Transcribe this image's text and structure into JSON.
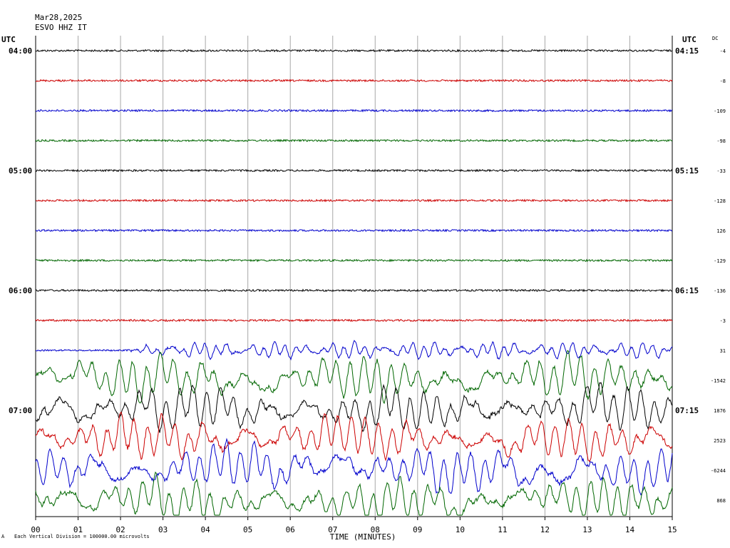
{
  "header": {
    "date": "Mar28,2025",
    "station": "ESVO HHZ IT",
    "left_tz": "UTC",
    "right_tz": "UTC",
    "dc_label": "DC"
  },
  "footer": {
    "note_marker": "A",
    "scale_note": "Each Vertical Division = 100000.00 microvolts"
  },
  "chart_data": {
    "type": "line",
    "title": "",
    "xlabel": "TIME (MINUTES)",
    "ylabel": "",
    "x_ticks": [
      "00",
      "01",
      "02",
      "03",
      "04",
      "05",
      "06",
      "07",
      "08",
      "09",
      "10",
      "11",
      "12",
      "13",
      "14",
      "15"
    ],
    "xlim": [
      0,
      15
    ],
    "grid": "vertical lines every minute",
    "trace_colors": [
      "#000000",
      "#cc0000",
      "#0000cc",
      "#006600"
    ],
    "left_time_labels": [
      {
        "row": 0,
        "text": "04:00"
      },
      {
        "row": 4,
        "text": "05:00"
      },
      {
        "row": 8,
        "text": "06:00"
      },
      {
        "row": 12,
        "text": "07:00"
      }
    ],
    "right_time_labels": [
      {
        "row": 0,
        "text": "04:15"
      },
      {
        "row": 4,
        "text": "05:15"
      },
      {
        "row": 8,
        "text": "06:15"
      },
      {
        "row": 12,
        "text": "07:15"
      }
    ],
    "dc_offsets": [
      "-4",
      "-8",
      "-109",
      "-98",
      "-33",
      "-128",
      "126",
      "-129",
      "-136",
      "-3",
      "31",
      "-1542",
      "1876",
      "2523",
      "-6244",
      "868"
    ],
    "trace_activity": [
      "quiet",
      "quiet",
      "quiet",
      "quiet",
      "quiet",
      "quiet",
      "quiet",
      "quiet",
      "quiet",
      "quiet",
      "onset",
      "strong",
      "strong",
      "strong",
      "strong",
      "strong"
    ],
    "onset_minute": 2.2,
    "series_rows": 16
  }
}
